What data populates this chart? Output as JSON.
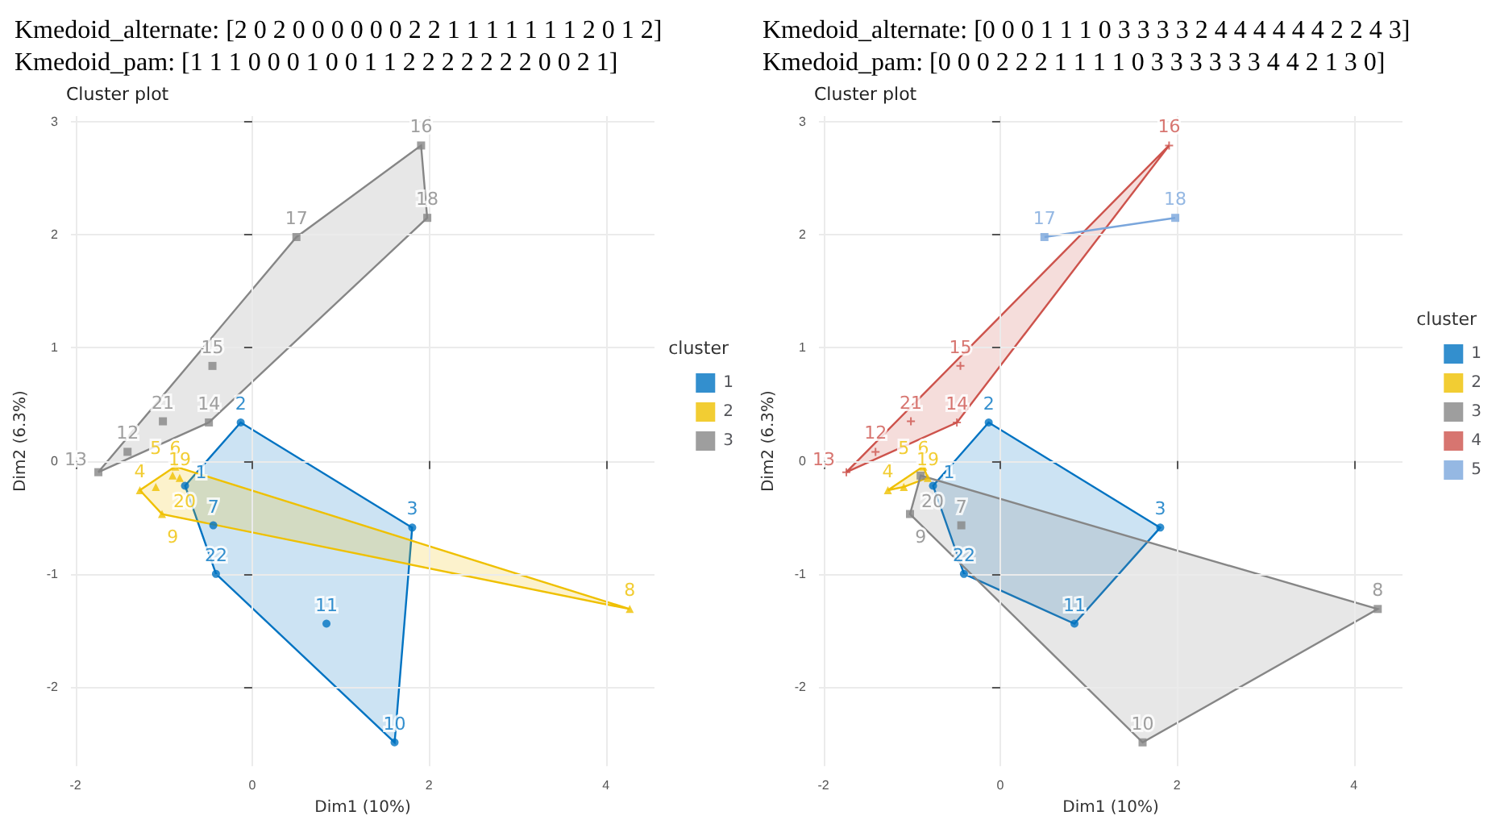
{
  "chart_data": [
    {
      "type": "scatter",
      "title": "Cluster plot",
      "xlabel": "Dim1 (10%)",
      "ylabel": "Dim2 (6.3%)",
      "legend_title": "cluster",
      "legend": "right",
      "grid": true,
      "xlim": [
        -2.05,
        4.55
      ],
      "xticks": [
        -2,
        0,
        2,
        4
      ],
      "ylim": [
        -2.7,
        3.05
      ],
      "yticks": [
        -2,
        -1,
        0,
        1,
        2,
        3
      ],
      "series": [
        {
          "name": "1",
          "color": "#0073c2",
          "marker": "circle",
          "x": [
            -0.76,
            -0.13,
            1.81,
            -0.44,
            1.61,
            0.84,
            -0.41
          ],
          "values": [
            -0.22,
            0.34,
            -0.59,
            -0.57,
            -2.49,
            -1.44,
            -1.0
          ]
        },
        {
          "name": "2",
          "color": "#efc000",
          "marker": "triangle",
          "x": [
            -1.27,
            -1.09,
            -0.87,
            4.27,
            -0.9,
            -0.82,
            -1.02
          ],
          "values": [
            -0.26,
            -0.23,
            -0.05,
            -1.31,
            -0.13,
            -0.15,
            -0.47
          ]
        },
        {
          "name": "3",
          "color": "#868686",
          "marker": "square",
          "x": [
            -1.41,
            -1.74,
            -0.49,
            -0.45,
            1.91,
            0.5,
            1.98,
            -1.01
          ],
          "values": [
            0.08,
            -0.1,
            0.34,
            0.84,
            2.79,
            1.98,
            2.15,
            0.35
          ]
        }
      ],
      "annotations": [
        "Kmedoid_alternate: [2 0 2 0 0 0 0 0 0 2 2 1 1 1 1 1 1 1 2 0 1 2]",
        "Kmedoid_pam: [1 1 1 0 0 0 1 0 0 1 1 2 2 2 2 2 2 2 0 0 2 1]",
        {
          "text": "1",
          "x": -0.76,
          "y": -0.22
        },
        {
          "text": "2",
          "x": -0.13,
          "y": 0.34
        },
        {
          "text": "3",
          "x": 1.81,
          "y": -0.59
        },
        {
          "text": "4",
          "x": -1.27,
          "y": -0.26
        },
        {
          "text": "5",
          "x": -1.09,
          "y": -0.23
        },
        {
          "text": "6",
          "x": -0.87,
          "y": -0.05
        },
        {
          "text": "7",
          "x": -0.44,
          "y": -0.57
        },
        {
          "text": "8",
          "x": 4.27,
          "y": -1.31
        },
        {
          "text": "9",
          "x": -0.9,
          "y": -0.13
        },
        {
          "text": "10",
          "x": 1.61,
          "y": -2.49
        },
        {
          "text": "11",
          "x": 0.84,
          "y": -1.44
        },
        {
          "text": "12",
          "x": -1.41,
          "y": 0.08
        },
        {
          "text": "13",
          "x": -1.74,
          "y": -0.1
        },
        {
          "text": "14",
          "x": -0.49,
          "y": 0.34
        },
        {
          "text": "15",
          "x": -0.45,
          "y": 0.84
        },
        {
          "text": "16",
          "x": 1.91,
          "y": 2.79
        },
        {
          "text": "17",
          "x": 0.5,
          "y": 1.98
        },
        {
          "text": "18",
          "x": 1.98,
          "y": 2.15
        },
        {
          "text": "19",
          "x": -0.82,
          "y": -0.15
        },
        {
          "text": "20",
          "x": -1.02,
          "y": -0.47
        },
        {
          "text": "21",
          "x": -1.01,
          "y": 0.35
        },
        {
          "text": "22",
          "x": -0.41,
          "y": -1.0
        }
      ]
    },
    {
      "type": "scatter",
      "title": "Cluster plot",
      "xlabel": "Dim1 (10%)",
      "ylabel": "Dim2 (6.3%)",
      "legend_title": "cluster",
      "legend": "right",
      "grid": true,
      "xlim": [
        -2.05,
        4.55
      ],
      "xticks": [
        -2,
        0,
        2,
        4
      ],
      "ylim": [
        -2.7,
        3.05
      ],
      "yticks": [
        -2,
        -1,
        0,
        1,
        2,
        3
      ],
      "series": [
        {
          "name": "1",
          "color": "#0073c2",
          "marker": "circle",
          "x": [
            -0.76,
            -0.13,
            1.81,
            0.84,
            -0.41
          ],
          "values": [
            -0.22,
            0.34,
            -0.59,
            -1.44,
            -1.0
          ]
        },
        {
          "name": "2",
          "color": "#efc000",
          "marker": "triangle",
          "x": [
            -1.27,
            -1.09,
            -0.87,
            -0.82
          ],
          "values": [
            -0.26,
            -0.23,
            -0.05,
            -0.15
          ]
        },
        {
          "name": "3",
          "color": "#868686",
          "marker": "square",
          "x": [
            -0.44,
            4.27,
            -0.9,
            1.61,
            -1.02
          ],
          "values": [
            -0.57,
            -1.31,
            -0.13,
            -2.49,
            -0.47
          ]
        },
        {
          "name": "4",
          "color": "#cd534c",
          "marker": "cross",
          "x": [
            -1.41,
            -1.74,
            -0.49,
            -0.45,
            1.91,
            -1.01
          ],
          "values": [
            0.08,
            -0.1,
            0.34,
            0.84,
            2.79,
            0.35
          ]
        },
        {
          "name": "5",
          "color": "#7aa6dc",
          "marker": "square",
          "x": [
            0.5,
            1.98
          ],
          "values": [
            1.98,
            2.15
          ]
        }
      ],
      "annotations": [
        "Kmedoid_alternate: [0 0 0 1 1 1 0 3 3 3 3 2 4 4 4 4 4 4 2 2 4 3]",
        "Kmedoid_pam: [0 0 0 2 2 2 1 1 1 1 0 3 3 3 3 3 3 4 4 2 1 3 0]",
        {
          "text": "1",
          "x": -0.76,
          "y": -0.22
        },
        {
          "text": "2",
          "x": -0.13,
          "y": 0.34
        },
        {
          "text": "3",
          "x": 1.81,
          "y": -0.59
        },
        {
          "text": "4",
          "x": -1.27,
          "y": -0.26
        },
        {
          "text": "5",
          "x": -1.09,
          "y": -0.23
        },
        {
          "text": "6",
          "x": -0.87,
          "y": -0.05
        },
        {
          "text": "7",
          "x": -0.44,
          "y": -0.57
        },
        {
          "text": "8",
          "x": 4.27,
          "y": -1.31
        },
        {
          "text": "9",
          "x": -0.9,
          "y": -0.13
        },
        {
          "text": "10",
          "x": 1.61,
          "y": -2.49
        },
        {
          "text": "11",
          "x": 0.84,
          "y": -1.44
        },
        {
          "text": "12",
          "x": -1.41,
          "y": 0.08
        },
        {
          "text": "13",
          "x": -1.74,
          "y": -0.1
        },
        {
          "text": "14",
          "x": -0.49,
          "y": 0.34
        },
        {
          "text": "15",
          "x": -0.45,
          "y": 0.84
        },
        {
          "text": "16",
          "x": 1.91,
          "y": 2.79
        },
        {
          "text": "17",
          "x": 0.5,
          "y": 1.98
        },
        {
          "text": "18",
          "x": 1.98,
          "y": 2.15
        },
        {
          "text": "19",
          "x": -0.82,
          "y": -0.15
        },
        {
          "text": "20",
          "x": -1.02,
          "y": -0.47
        },
        {
          "text": "21",
          "x": -1.01,
          "y": 0.35
        },
        {
          "text": "22",
          "x": -0.41,
          "y": -1.0
        }
      ]
    }
  ]
}
